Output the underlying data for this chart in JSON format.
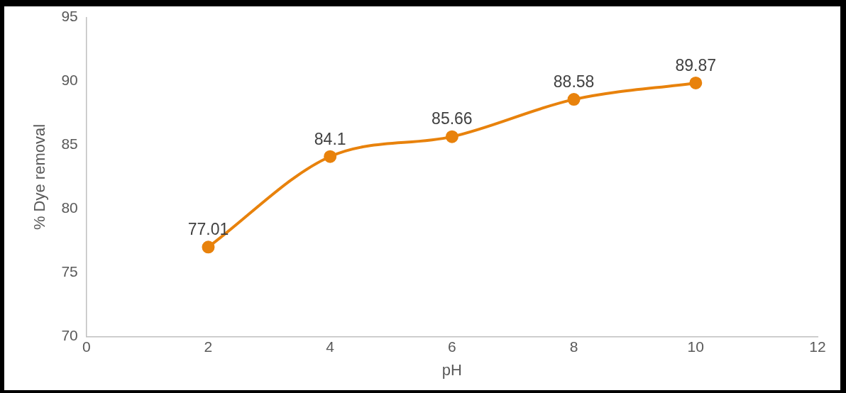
{
  "chart_data": {
    "type": "line",
    "xlabel": "pH",
    "ylabel": "% Dye removal",
    "x": [
      2,
      4,
      6,
      8,
      10
    ],
    "series": [
      {
        "color": "#e8820c",
        "values": [
          77.01,
          84.1,
          85.66,
          88.58,
          89.87
        ]
      }
    ],
    "xlim": [
      0,
      12
    ],
    "xticks": [
      0,
      2,
      4,
      6,
      8,
      10,
      12
    ],
    "ylim": [
      70,
      95
    ],
    "yticks": [
      70,
      75,
      80,
      85,
      90,
      95
    ],
    "grid": false,
    "legend": false,
    "marker": "circle",
    "line_style": "solid",
    "data_labels": true
  }
}
